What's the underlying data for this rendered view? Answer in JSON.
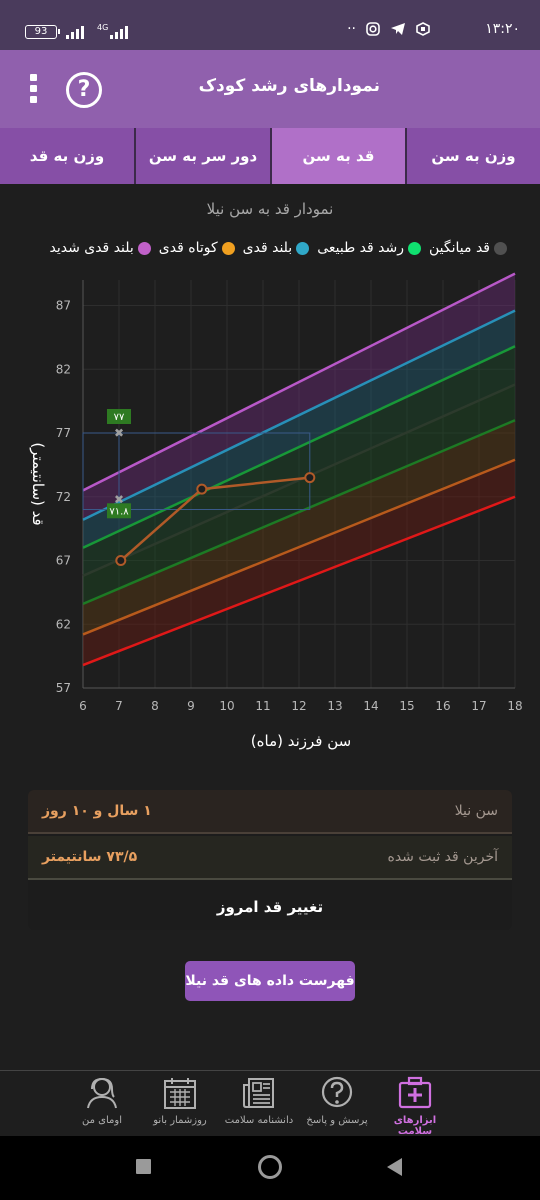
{
  "status_bar": {
    "time": "۱۳:۲۰",
    "battery": "93",
    "network": "4G",
    "icons": [
      "app-icon",
      "telegram-icon",
      "instagram-icon",
      "more-dots-icon"
    ]
  },
  "app_bar": {
    "title": "نمودارهای رشد کودک",
    "menu_icon": "more-vert-icon",
    "help_icon": "help-circle-icon",
    "help_glyph": "?",
    "background": "#9060ad"
  },
  "tabs": [
    {
      "label": "وزن به سن",
      "active": false
    },
    {
      "label": "قد به سن",
      "active": true
    },
    {
      "label": "دور سر به سن",
      "active": false
    },
    {
      "label": "وزن به قد",
      "active": false
    }
  ],
  "chart_data": {
    "type": "line",
    "title": "نمودار قد به سن نیلا",
    "xlabel": "سن فرزند (ماه)",
    "ylabel": "قد (سانتیمتر)",
    "xlim": [
      6,
      18
    ],
    "ylim": [
      57,
      89
    ],
    "xticks": [
      "6",
      "7",
      "8",
      "9",
      "10",
      "11",
      "12",
      "13",
      "14",
      "15",
      "16",
      "17",
      "18"
    ],
    "yticks": [
      "57",
      "62",
      "67",
      "72",
      "77",
      "82",
      "87"
    ],
    "legend": [
      {
        "label": "بلند قدی شدید",
        "color": "#c060c8"
      },
      {
        "label": "کوتاه قدی",
        "color": "#f0a020"
      },
      {
        "label": "بلند قدی",
        "color": "#30a8c8"
      },
      {
        "label": "رشد قد طبیعی",
        "color": "#10e070"
      },
      {
        "label": "قد میانگین",
        "color": "#505050"
      }
    ],
    "series": [
      {
        "name": "بلند قدی شدید",
        "color": "#b858c8",
        "x": [
          6,
          18
        ],
        "y": [
          72.5,
          89.5
        ]
      },
      {
        "name": "بلند قدی",
        "color": "#2890b8",
        "x": [
          6,
          18
        ],
        "y": [
          70.2,
          86.6
        ]
      },
      {
        "name": "رشد قد طبیعی",
        "color": "#189838",
        "x": [
          6,
          18
        ],
        "y": [
          68.0,
          83.8
        ]
      },
      {
        "name": "قد میانگین",
        "color": "#2c3a2c",
        "x": [
          6,
          18
        ],
        "y": [
          65.8,
          80.8
        ]
      },
      {
        "name": "رشد قد طبیعی",
        "color": "#1d7a24",
        "x": [
          6,
          18
        ],
        "y": [
          63.6,
          78.0
        ]
      },
      {
        "name": "کوتاه قدی",
        "color": "#b85a1c",
        "x": [
          6,
          18
        ],
        "y": [
          61.2,
          74.9
        ]
      },
      {
        "name": "",
        "color": "#e01818",
        "x": [
          6,
          18
        ],
        "y": [
          58.8,
          72.0
        ]
      }
    ],
    "child_series": {
      "color": "#b05a28",
      "x": [
        7.05,
        9.3,
        12.3
      ],
      "y": [
        67.0,
        72.6,
        73.5
      ]
    },
    "crosshair": {
      "x": 7.0,
      "y_top": 77.0,
      "y_bottom": 71.8,
      "top_label": "۷۷",
      "bottom_label": "۷۱.۸",
      "label_color": "#2e7a22"
    }
  },
  "info": {
    "rows": [
      {
        "label": "سن نیلا",
        "value": "۱ سال و ۱۰ روز",
        "bg": "#2a2420"
      },
      {
        "label": "آخرین قد ثبت شده",
        "value": "۷۳/۵ سانتیمتر",
        "bg": "#262620"
      }
    ],
    "change_button": "تغییر قد امروز"
  },
  "list_button": "فهرست داده های قد نیلا",
  "bottom_nav": [
    {
      "label": "ابزارهای سلامت",
      "icon": "first-aid-kit-icon",
      "active": true
    },
    {
      "label": "پرسش و پاسخ",
      "icon": "question-bubble-icon",
      "active": false
    },
    {
      "label": "دانشنامه سلامت",
      "icon": "newspaper-icon",
      "active": false
    },
    {
      "label": "روزشمار بانو",
      "icon": "calendar-icon",
      "active": false
    },
    {
      "label": "اومای من",
      "icon": "user-avatar-icon",
      "active": false
    }
  ]
}
